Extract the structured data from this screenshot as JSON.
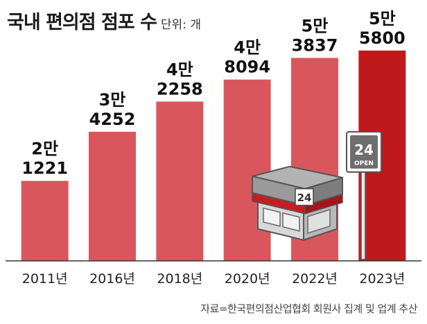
{
  "chart_data": {
    "type": "bar",
    "title": "국내 편의점 점포 수",
    "unit_label": "단위: 개",
    "categories": [
      "2011년",
      "2016년",
      "2018년",
      "2020년",
      "2022년",
      "2023년"
    ],
    "values": [
      21221,
      34252,
      42258,
      48094,
      53837,
      55800
    ],
    "data_labels": [
      [
        "2만",
        "1221"
      ],
      [
        "3만",
        "4252"
      ],
      [
        "4만",
        "2258"
      ],
      [
        "4만",
        "8094"
      ],
      [
        "5만",
        "3837"
      ],
      [
        "5만",
        "5800"
      ]
    ],
    "ylim": [
      0,
      60000
    ],
    "grid": false,
    "bar_color": "#d9575c",
    "highlight_color": "#c0191c",
    "highlight_index": 5,
    "source": "자료=한국편의점산업협회 회원사 집계 및 업계 추산"
  },
  "illustration": {
    "store_sign": "24",
    "pole_sign_number": "24",
    "pole_sign_text": "OPEN"
  }
}
